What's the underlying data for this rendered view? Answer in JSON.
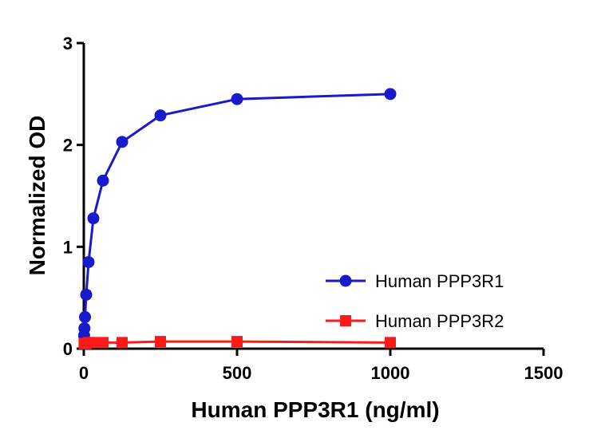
{
  "chart_data": {
    "type": "line",
    "x_label": "Human PPP3R1 (ng/ml)",
    "y_label": "Normalized OD",
    "x": [
      0.98,
      1.95,
      3.9,
      7.8,
      15.6,
      31.25,
      62.5,
      125,
      250,
      500,
      1000
    ],
    "series": [
      {
        "name": "Human PPP3R1",
        "color": "#1a1acd",
        "marker": "circle",
        "values": [
          0.13,
          0.2,
          0.31,
          0.53,
          0.85,
          1.28,
          1.65,
          2.03,
          2.29,
          2.45,
          2.5
        ]
      },
      {
        "name": "Human PPP3R2",
        "color": "#ff1a1a",
        "marker": "square",
        "values": [
          0.05,
          0.05,
          0.05,
          0.05,
          0.06,
          0.06,
          0.06,
          0.06,
          0.07,
          0.07,
          0.06
        ]
      }
    ],
    "xlim": [
      0,
      1500
    ],
    "xticks": [
      0,
      500,
      1000,
      1500
    ],
    "ylim": [
      0,
      3
    ],
    "yticks": [
      0,
      1,
      2,
      3
    ],
    "grid": false,
    "legend": "right"
  }
}
